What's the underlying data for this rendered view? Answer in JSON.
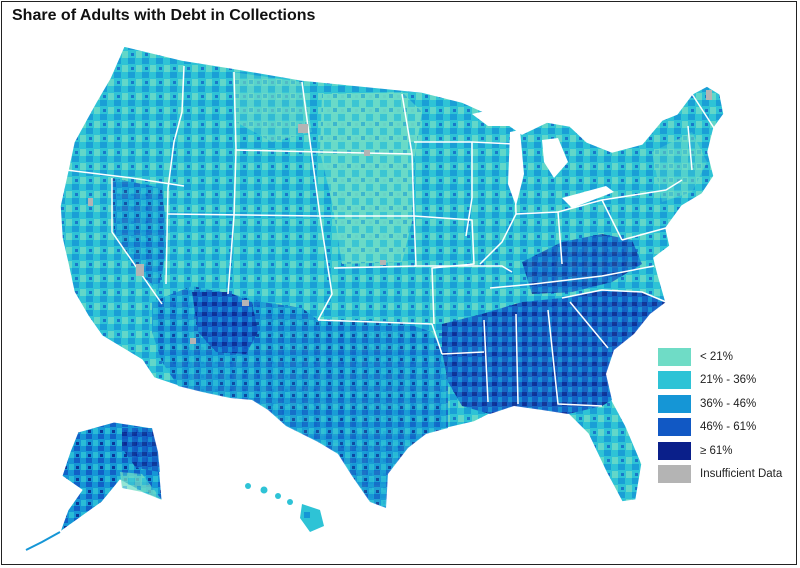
{
  "title": "Share of Adults with Debt in Collections",
  "legend": [
    {
      "label": "< 21%",
      "color": "#6fdcc6"
    },
    {
      "label": "21% - 36%",
      "color": "#2ec3d6"
    },
    {
      "label": "36% - 46%",
      "color": "#1596d6"
    },
    {
      "label": "46% - 61%",
      "color": "#1158c4"
    },
    {
      "label": "≥ 61%",
      "color": "#0a1f8a"
    },
    {
      "label": "Insufficient Data",
      "color": "#b4b4b4"
    }
  ]
}
